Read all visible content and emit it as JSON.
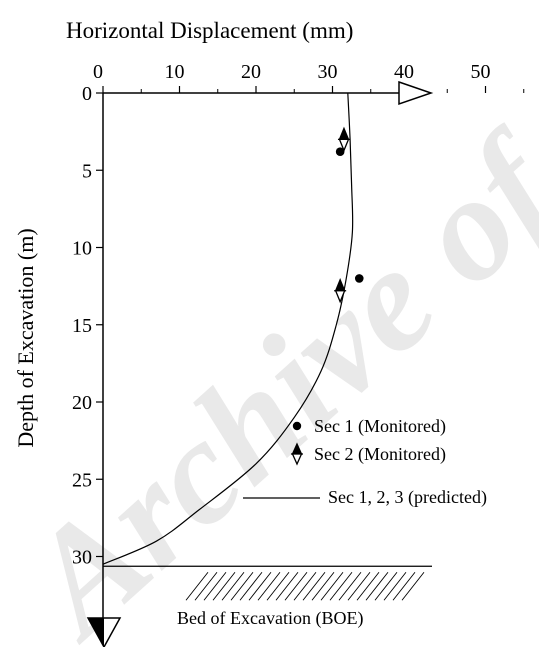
{
  "chart_data": {
    "type": "scatter",
    "title": "Horizontal Displacement (mm)",
    "xlabel": "Horizontal Displacement (mm)",
    "ylabel": "Depth of Excavation (m)",
    "xlim": [
      0,
      60
    ],
    "ylim": [
      0,
      30.5
    ],
    "y_inverted": true,
    "x_axis_position": "top",
    "x_ticks": [
      0,
      10,
      20,
      30,
      40,
      50
    ],
    "y_ticks": [
      0,
      5,
      10,
      15,
      20,
      25,
      30
    ],
    "grid": false,
    "legend_position": "lower-right",
    "series": [
      {
        "name": "Sec 1 (Monitored)",
        "marker": "filled-circle",
        "points": [
          {
            "x": 31,
            "y": 3.8
          },
          {
            "x": 33.5,
            "y": 12
          }
        ]
      },
      {
        "name": "Sec 2 (Monitored)",
        "marker": "crossed-diamond",
        "points": [
          {
            "x": 31.5,
            "y": 3
          },
          {
            "x": 31,
            "y": 12.8
          }
        ]
      },
      {
        "name": "Sec 1, 2, 3 (predicted)",
        "marker": "line",
        "points": [
          {
            "x": 32,
            "y": 0
          },
          {
            "x": 32.3,
            "y": 3
          },
          {
            "x": 32.5,
            "y": 6
          },
          {
            "x": 32.6,
            "y": 9
          },
          {
            "x": 31.8,
            "y": 12
          },
          {
            "x": 30.5,
            "y": 15
          },
          {
            "x": 28.5,
            "y": 18
          },
          {
            "x": 25,
            "y": 21
          },
          {
            "x": 20,
            "y": 24
          },
          {
            "x": 12.5,
            "y": 27
          },
          {
            "x": 7,
            "y": 29
          },
          {
            "x": 0,
            "y": 30.5
          }
        ]
      }
    ],
    "annotations": [
      "Bed of Excavation (BOE)"
    ]
  },
  "watermark_text": "Archive of SID"
}
